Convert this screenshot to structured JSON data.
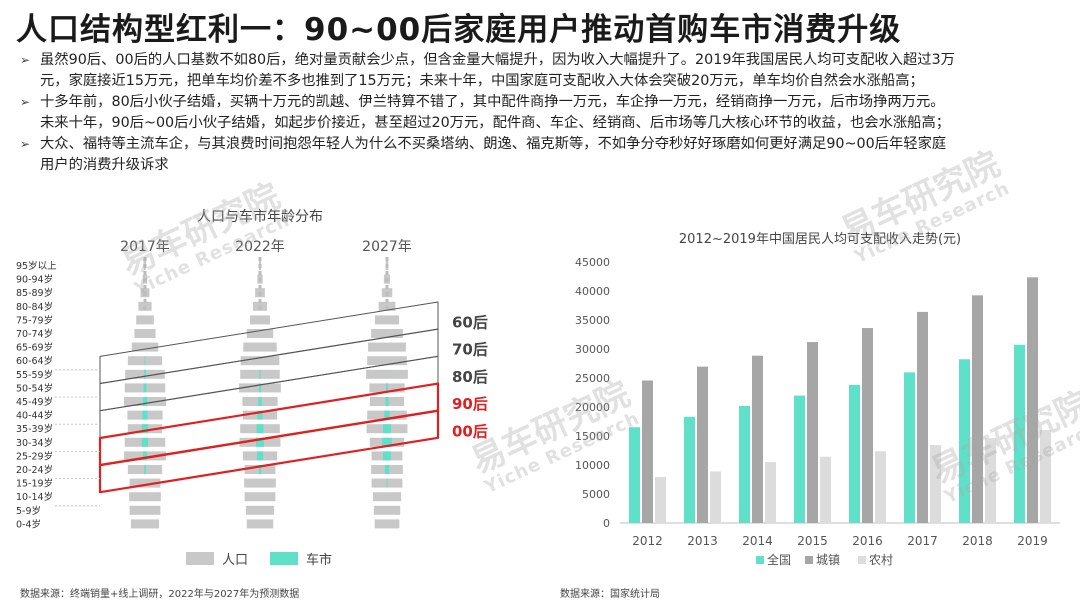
{
  "title": "人口结构型红利一：90~00后家庭用户推动首购车市消费升级",
  "bullets": [
    {
      "lines": [
        "虽然90后、00后的人口基数不如80后，绝对量贡献会少点，但含金量大幅提升，因为收入大幅提升了。2019年我国居民人均可支配收入超过3万",
        "元，家庭接近15万元，把单车均价差不多也推到了15万元；未来十年，中国家庭可支配收入大体会突破20万元，单车均价自然会水涨船高；"
      ]
    },
    {
      "lines": [
        "十多年前，80后小伙子结婚，买辆十万元的凯越、伊兰特算不错了，其中配件商挣一万元，车企挣一万元，经销商挣一万元，后市场挣两万元。",
        "未来十年，90后~00后小伙子结婚，如起步价接近，甚至超过20万元，配件商、车企、经销商、后市场等几大核心环节的收益，也会水涨船高；"
      ]
    },
    {
      "lines": [
        "大众、福特等主流车企，与其浪费时间抱怨年轻人为什么不买桑塔纳、朗逸、福克斯等，不如争分夺秒好好琢磨如何更好满足90~00后年轻家庭",
        "用户的消费升级诉求"
      ]
    }
  ],
  "bullet_marker": "➢",
  "watermark": {
    "cn": "易车研究院",
    "en": "Yiche Research"
  },
  "chart_data": [
    {
      "type": "bar",
      "subtype": "population-pyramid",
      "title": "人口与车市年龄分布",
      "columns": [
        "2017年",
        "2022年",
        "2027年"
      ],
      "age_groups": [
        "95岁以上",
        "90-94岁",
        "85-89岁",
        "80-84岁",
        "75-79岁",
        "70-74岁",
        "65-69岁",
        "60-64岁",
        "55-59岁",
        "50-54岁",
        "45-49岁",
        "40-44岁",
        "35-39岁",
        "30-34岁",
        "25-29岁",
        "20-24岁",
        "15-19岁",
        "10-14岁",
        "5-9岁",
        "0-4岁"
      ],
      "population": [
        [
          0.03,
          0.1,
          0.2,
          0.3,
          0.4,
          0.48,
          0.6,
          0.78,
          0.9,
          0.92,
          0.96,
          0.8,
          0.78,
          0.92,
          0.95,
          0.78,
          0.7,
          0.72,
          0.7,
          0.64
        ],
        [
          0.05,
          0.12,
          0.22,
          0.32,
          0.45,
          0.6,
          0.76,
          0.88,
          0.9,
          0.95,
          0.8,
          0.78,
          0.9,
          0.93,
          0.78,
          0.7,
          0.72,
          0.7,
          0.64,
          0.6
        ],
        [
          0.06,
          0.14,
          0.24,
          0.38,
          0.55,
          0.72,
          0.86,
          0.9,
          0.95,
          0.8,
          0.78,
          0.9,
          0.93,
          0.78,
          0.7,
          0.72,
          0.7,
          0.64,
          0.6,
          0.56
        ]
      ],
      "car_market": [
        [
          0,
          0,
          0,
          0,
          0,
          0,
          0,
          0.02,
          0.04,
          0.07,
          0.1,
          0.12,
          0.14,
          0.14,
          0.1,
          0.04,
          0,
          0,
          0,
          0
        ],
        [
          0,
          0,
          0,
          0,
          0,
          0,
          0,
          0,
          0.03,
          0.05,
          0.08,
          0.12,
          0.16,
          0.18,
          0.14,
          0.06,
          0,
          0,
          0,
          0
        ],
        [
          0,
          0,
          0,
          0,
          0,
          0,
          0,
          0,
          0,
          0.04,
          0.07,
          0.12,
          0.18,
          0.22,
          0.18,
          0.1,
          0.02,
          0,
          0,
          0
        ]
      ],
      "cohorts": [
        {
          "label": "60后",
          "highlight": false
        },
        {
          "label": "70后",
          "highlight": false
        },
        {
          "label": "80后",
          "highlight": false
        },
        {
          "label": "90后",
          "highlight": true
        },
        {
          "label": "00后",
          "highlight": true
        }
      ],
      "legend": [
        "人口",
        "车市"
      ],
      "colors": {
        "population": "#c8c8c8",
        "car_market": "#5fe0c8",
        "highlight": "#e02020",
        "cohort": "#555555"
      },
      "source": "数据来源：终端销量+线上调研，2022年与2027年为预测数据"
    },
    {
      "type": "bar",
      "title": "2012~2019年中国居民人均可支配收入走势(元)",
      "categories": [
        "2012",
        "2013",
        "2014",
        "2015",
        "2016",
        "2017",
        "2018",
        "2019"
      ],
      "series": [
        {
          "name": "全国",
          "color": "#5fe0c8",
          "values": [
            16510,
            18311,
            20167,
            21966,
            23821,
            25974,
            28228,
            30733
          ]
        },
        {
          "name": "城镇",
          "color": "#a6a6a6",
          "values": [
            24565,
            26955,
            28844,
            31195,
            33616,
            36396,
            39251,
            42359
          ]
        },
        {
          "name": "农村",
          "color": "#dcdcdc",
          "values": [
            7917,
            8896,
            10489,
            11422,
            12363,
            13432,
            14617,
            16021
          ]
        }
      ],
      "ylim": [
        0,
        45000
      ],
      "yticks": [
        0,
        5000,
        10000,
        15000,
        20000,
        25000,
        30000,
        35000,
        40000,
        45000
      ],
      "grid": false,
      "legend_position": "bottom",
      "source": "数据来源：国家统计局"
    }
  ]
}
